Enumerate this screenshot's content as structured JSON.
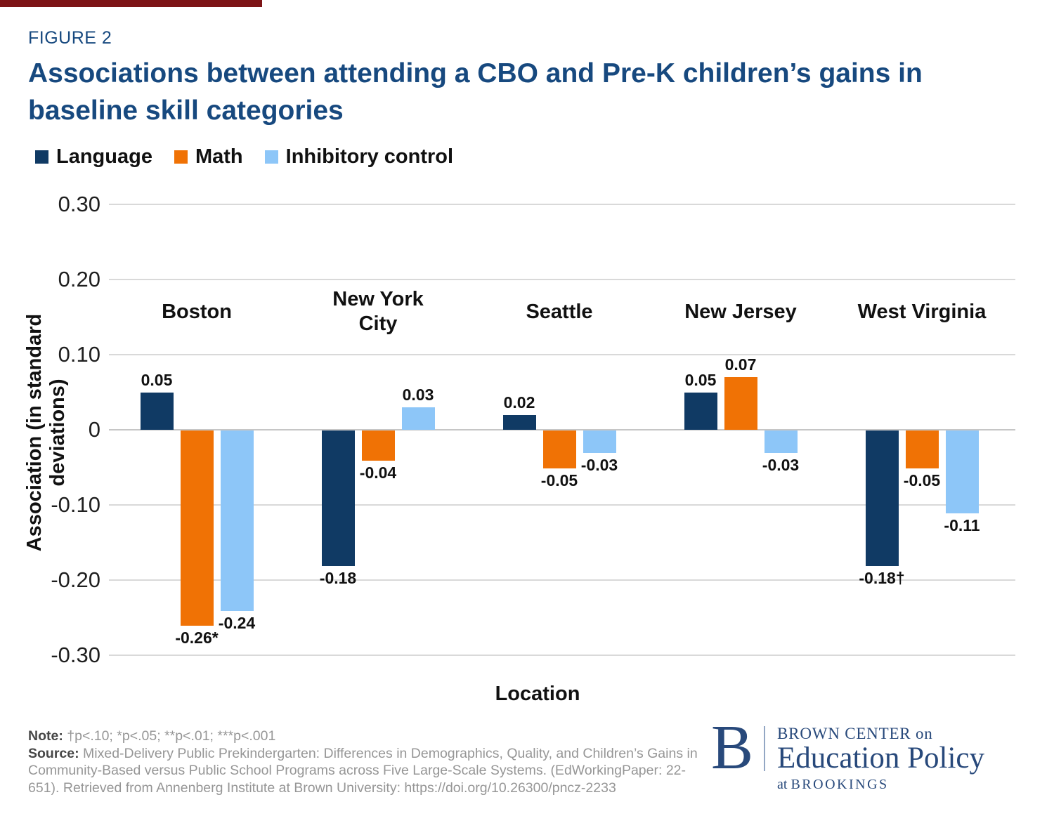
{
  "figure": {
    "eyebrow": "FIGURE 2",
    "title": "Associations between attending a CBO and Pre-K children’s gains in baseline skill categories"
  },
  "chart_data": {
    "type": "bar",
    "categories": [
      "Boston",
      "New York City",
      "Seattle",
      "New Jersey",
      "West Virginia"
    ],
    "category_labels": [
      "Boston",
      "New York\nCity",
      "Seattle",
      "New Jersey",
      "West Virginia"
    ],
    "series": [
      {
        "name": "Language",
        "color": "#103A64",
        "values": [
          0.05,
          -0.18,
          0.02,
          0.05,
          -0.18
        ],
        "labels": [
          "0.05",
          "-0.18",
          "0.02",
          "0.05",
          "-0.18†"
        ]
      },
      {
        "name": "Math",
        "color": "#F07205",
        "values": [
          -0.26,
          -0.04,
          -0.05,
          0.07,
          -0.05
        ],
        "labels": [
          "-0.26*",
          "-0.04",
          "-0.05",
          "0.07",
          "-0.05"
        ]
      },
      {
        "name": "Inhibitory control",
        "color": "#8DC6F8",
        "values": [
          -0.24,
          0.03,
          -0.03,
          -0.03,
          -0.11
        ],
        "labels": [
          "-0.24",
          "0.03",
          "-0.03",
          "-0.03",
          "-0.11"
        ]
      }
    ],
    "xlabel": "Location",
    "ylabel": "Association (in standard deviations)",
    "ylim": [
      -0.3,
      0.3
    ],
    "yticks": [
      0.3,
      0.2,
      0.1,
      0,
      -0.1,
      -0.2,
      -0.3
    ],
    "ytick_labels": [
      "0.30",
      "0.20",
      "0.10",
      "0",
      "-0.10",
      "-0.20",
      "-0.30"
    ],
    "grid": true,
    "legend_position": "top"
  },
  "footer": {
    "note_label": "Note:",
    "note_text": "†p<.10; *p<.05; **p<.01; ***p<.001",
    "source_label": "Source:",
    "source_text": "Mixed-Delivery Public Prekindergarten: Differences in Demographics, Quality, and Children’s Gains in Community-Based versus Public School Programs across Five Large-Scale Systems. (EdWorkingPaper: 22-651). Retrieved from Annenberg Institute at Brown University: https://doi.org/10.26300/pncz-2233"
  },
  "logo": {
    "monogram": "B",
    "line1_caps": "BROWN CENTER",
    "line1_small": "on",
    "line2": "Education Policy",
    "line3_small": "at",
    "line3_caps": "BROOKINGS"
  },
  "colors": {
    "accent_bar": "#7D1416",
    "title_navy": "#17497F",
    "gridline": "#D9D9D9",
    "logo_navy": "#28497B"
  }
}
